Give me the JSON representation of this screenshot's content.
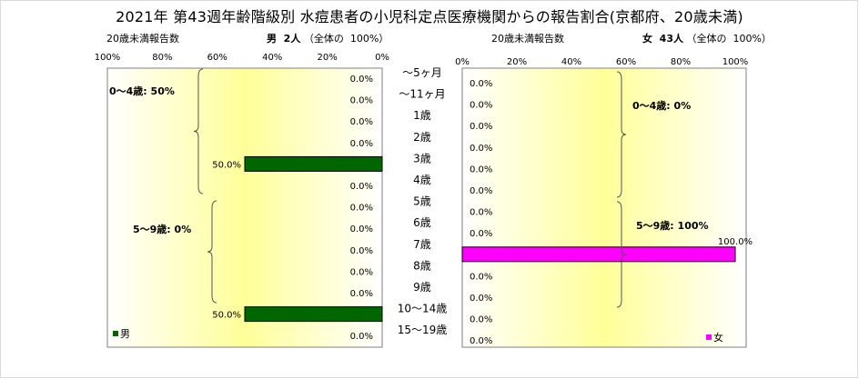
{
  "title": "2021年 第43週年齢階級別 水痘患者の小児科定点医療機関からの報告割合(京都府、20歳未満)",
  "left_panel": {
    "subtitle_left": "20歳未満報告数",
    "subtitle_gender": "男",
    "subtitle_count": "2人",
    "subtitle_total": "（全体の",
    "subtitle_pct": "100%）",
    "legend": "男",
    "brace1": "0～4歳: 50%",
    "brace2": "5～9歳: 0%"
  },
  "right_panel": {
    "subtitle_left": "20歳未満報告数",
    "subtitle_gender": "女",
    "subtitle_count": "43人",
    "subtitle_total": "（全体の",
    "subtitle_pct": "100%）",
    "legend": "女",
    "brace1": "0～4歳: 0%",
    "brace2": "5～9歳: 100%"
  },
  "colors": {
    "male": "#006600",
    "female": "#ff00ff",
    "plot_bg_edge": "#ffffff",
    "plot_bg_center": "#ffff99"
  },
  "chart_data": {
    "type": "bar",
    "orientation": "horizontal",
    "categories": [
      "～5ヶ月",
      "～11ヶ月",
      "1歳",
      "2歳",
      "3歳",
      "4歳",
      "5歳",
      "6歳",
      "7歳",
      "8歳",
      "9歳",
      "10～14歳",
      "15～19歳"
    ],
    "x_ticks_left": [
      "100%",
      "80%",
      "60%",
      "40%",
      "20%",
      "0%"
    ],
    "x_ticks_right": [
      "0%",
      "20%",
      "40%",
      "60%",
      "80%",
      "100%"
    ],
    "xlim": [
      0,
      100
    ],
    "series": [
      {
        "name": "男",
        "values": [
          0,
          0,
          0,
          0,
          50,
          0,
          0,
          0,
          0,
          0,
          0,
          50,
          0
        ],
        "labels": [
          "0.0%",
          "0.0%",
          "0.0%",
          "0.0%",
          "50.0%",
          "0.0%",
          "0.0%",
          "0.0%",
          "0.0%",
          "0.0%",
          "0.0%",
          "50.0%",
          "0.0%"
        ]
      },
      {
        "name": "女",
        "values": [
          0,
          0,
          0,
          0,
          0,
          0,
          0,
          0,
          100,
          0,
          0,
          0,
          0
        ],
        "labels": [
          "0.0%",
          "0.0%",
          "0.0%",
          "0.0%",
          "0.0%",
          "0.0%",
          "0.0%",
          "0.0%",
          "100.0%",
          "0.0%",
          "0.0%",
          "0.0%",
          "0.0%"
        ]
      }
    ]
  }
}
